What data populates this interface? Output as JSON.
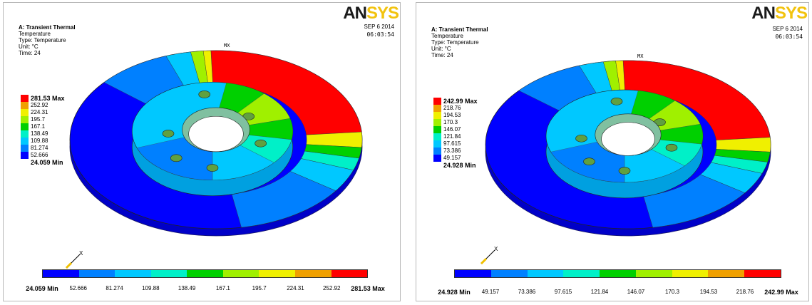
{
  "brand": {
    "an": "AN",
    "sys": "SYS"
  },
  "colors": [
    "#0000ff",
    "#0080ff",
    "#00c8ff",
    "#00f0c8",
    "#00d000",
    "#a0f000",
    "#f0f000",
    "#f0a000",
    "#ff0000"
  ],
  "panels": [
    {
      "title": "A: Transient Thermal",
      "line2": "Temperature",
      "line3": "Type: Temperature",
      "line4": "Unit: °C",
      "line5": "Time: 24",
      "date": "SEP 6 2014",
      "time": "06:03:54",
      "mx": "MX",
      "axis": "X",
      "legend": {
        "max": "281.53 Max",
        "min": "24.059 Min",
        "values": [
          "252.92",
          "224.31",
          "195.7",
          "167.1",
          "138.49",
          "109.88",
          "81.274",
          "52.666"
        ]
      },
      "scale": {
        "min": "24.059 Min",
        "max": "281.53 Max",
        "values": [
          "52.666",
          "81.274",
          "109.88",
          "138.49",
          "167.1",
          "195.7",
          "224.31",
          "252.92"
        ]
      }
    },
    {
      "title": "A: Transient Thermal",
      "line2": "Temperature",
      "line3": "Type: Temperature",
      "line4": "Unit: °C",
      "line5": "Time: 24",
      "date": "SEP 6 2014",
      "time": "06:03:54",
      "mx": "MX",
      "axis": "X",
      "legend": {
        "max": "242.99  Max",
        "min": "24.928  Min",
        "values": [
          "218.76",
          "194.53",
          "170.3",
          "146.07",
          "121.84",
          "97.615",
          "73.386",
          "49.157"
        ]
      },
      "scale": {
        "min": "24.928 Min",
        "max": "242.99 Max",
        "values": [
          "49.157",
          "73.386",
          "97.615",
          "121.84",
          "146.07",
          "170.3",
          "194.53",
          "218.76"
        ]
      }
    }
  ]
}
